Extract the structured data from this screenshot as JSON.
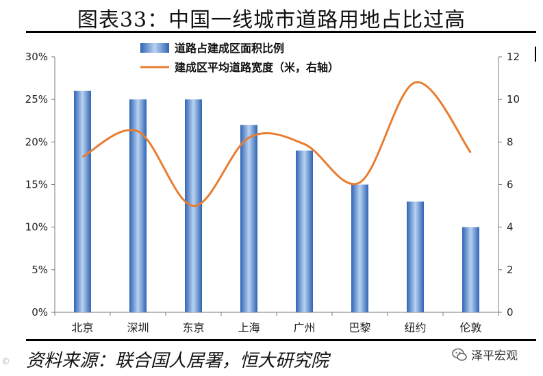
{
  "title": "图表33：中国一线城市道路用地占比过高",
  "source": "资料来源：联合国人居署，恒大研究院",
  "watermark_right": "泽平宏观",
  "icons": {
    "watermark": "wechat-icon"
  },
  "colors": {
    "bar": "#4a7ec9",
    "bar_light": "#a9c6ea",
    "line": "#e87d32"
  },
  "chart_data": {
    "type": "bar",
    "categories": [
      "北京",
      "深圳",
      "东京",
      "上海",
      "广州",
      "巴黎",
      "纽约",
      "伦敦"
    ],
    "series": [
      {
        "name": "道路占建成区面积比例",
        "type": "bar",
        "axis": "left",
        "values": [
          26,
          25,
          25,
          22,
          19,
          15,
          13,
          10
        ]
      },
      {
        "name": "建成区平均道路宽度（米，右轴）",
        "type": "line",
        "axis": "right",
        "values": [
          7.3,
          8.5,
          5.0,
          8.2,
          7.9,
          6.1,
          10.8,
          7.5
        ]
      }
    ],
    "y_left": {
      "range": [
        0,
        30
      ],
      "ticks": [
        "0%",
        "5%",
        "10%",
        "15%",
        "20%",
        "25%",
        "30%"
      ]
    },
    "y_right": {
      "range": [
        0,
        12
      ],
      "ticks": [
        "0",
        "2",
        "4",
        "6",
        "8",
        "10",
        "12"
      ]
    },
    "grid": false,
    "legend": "top"
  }
}
